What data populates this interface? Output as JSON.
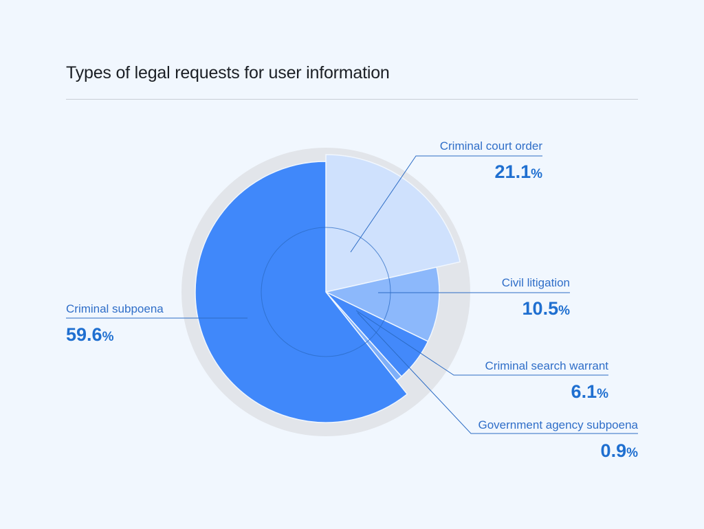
{
  "header": {
    "title": "Types of legal requests for user information"
  },
  "chart_data": {
    "type": "pie",
    "title": "Types of legal requests for user information",
    "categories": [
      "Criminal subpoena",
      "Criminal court order",
      "Civil litigation",
      "Criminal search warrant",
      "Government agency subpoena"
    ],
    "values": [
      59.6,
      21.1,
      10.5,
      6.1,
      0.9
    ],
    "value_labels": [
      "59.6",
      "21.1",
      "10.5",
      "6.1",
      "0.9"
    ],
    "unit": "%",
    "colors": [
      "#4088fa",
      "#cfe1fd",
      "#8cb8fb",
      "#4389fa",
      "#7eaff9"
    ]
  }
}
